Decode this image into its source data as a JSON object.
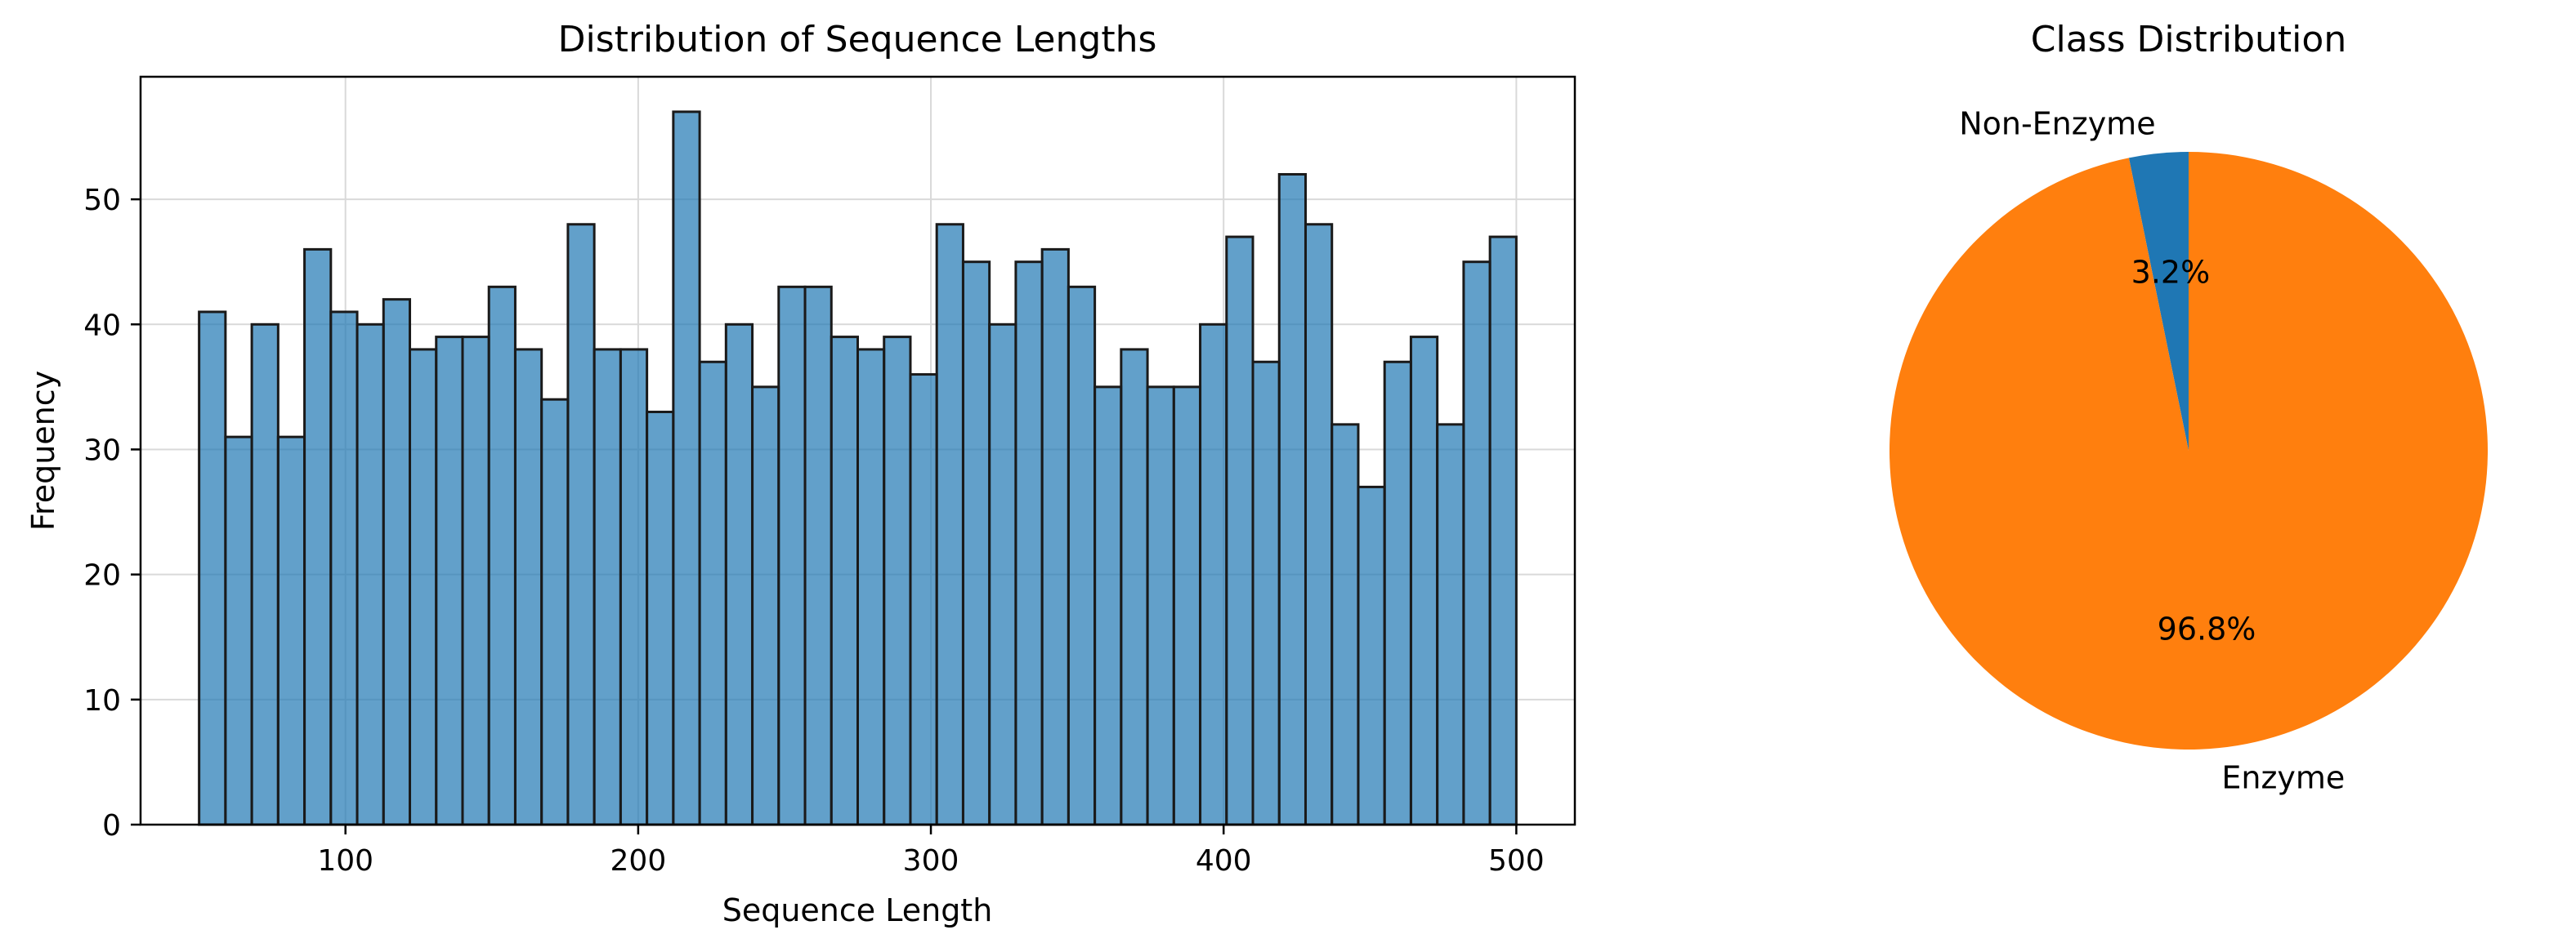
{
  "chart_data": [
    {
      "type": "bar",
      "title": "Distribution of Sequence Lengths",
      "xlabel": "Sequence Length",
      "ylabel": "Frequency",
      "xlim": [
        30,
        520
      ],
      "ylim": [
        0,
        59.8
      ],
      "xticks": [
        100,
        200,
        300,
        400,
        500
      ],
      "yticks": [
        0,
        10,
        20,
        30,
        40,
        50
      ],
      "grid": true,
      "bar_color": "#1f77b4",
      "bin_start": 50,
      "bin_width": 9,
      "values": [
        41,
        31,
        40,
        31,
        46,
        41,
        40,
        42,
        38,
        39,
        39,
        43,
        38,
        34,
        48,
        38,
        38,
        33,
        57,
        37,
        40,
        35,
        43,
        43,
        39,
        38,
        39,
        36,
        48,
        45,
        40,
        45,
        46,
        43,
        35,
        38,
        35,
        35,
        40,
        47,
        37,
        52,
        48,
        32,
        27,
        37,
        39,
        32,
        45,
        47
      ]
    },
    {
      "type": "pie",
      "title": "Class Distribution",
      "slices": [
        {
          "label": "Non-Enzyme",
          "value": 3.2,
          "pct_label": "3.2%",
          "color": "#1f77b4"
        },
        {
          "label": "Enzyme",
          "value": 96.8,
          "pct_label": "96.8%",
          "color": "#ff7f0e"
        }
      ],
      "start_angle_deg": 90
    }
  ]
}
